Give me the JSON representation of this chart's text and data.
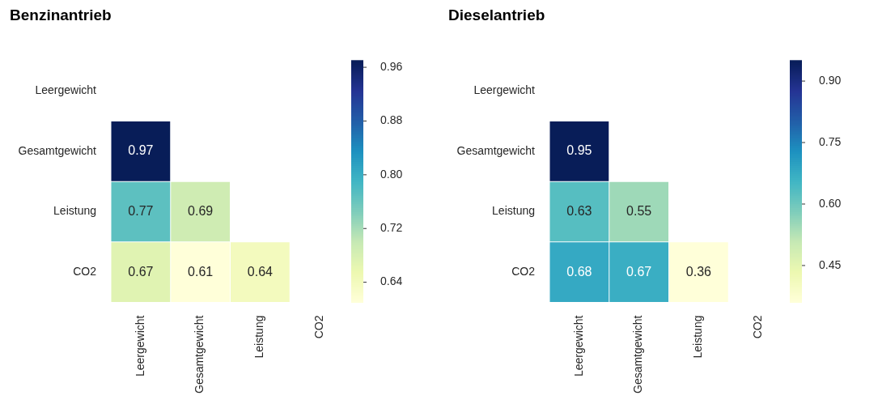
{
  "chart_data": [
    {
      "type": "heatmap",
      "title": "Benzinantrieb",
      "categories": [
        "Leergewicht",
        "Gesamtgewicht",
        "Leistung",
        "CO2"
      ],
      "y_categories": [
        "Leergewicht",
        "Gesamtgewicht",
        "Leistung",
        "CO2"
      ],
      "cells": [
        [
          null,
          null,
          null,
          null
        ],
        [
          0.97,
          null,
          null,
          null
        ],
        [
          0.77,
          0.69,
          null,
          null
        ],
        [
          0.67,
          0.61,
          0.64,
          null
        ]
      ],
      "clim": [
        0.61,
        0.97
      ],
      "cticks": [
        0.64,
        0.72,
        {
          "value": 0.8,
          "label": "0.80"
        },
        0.88,
        0.96
      ],
      "data_labels": true
    },
    {
      "type": "heatmap",
      "title": "Dieselantrieb",
      "categories": [
        "Leergewicht",
        "Gesamtgewicht",
        "Leistung",
        "CO2"
      ],
      "y_categories": [
        "Leergewicht",
        "Gesamtgewicht",
        "Leistung",
        "CO2"
      ],
      "cells": [
        [
          null,
          null,
          null,
          null
        ],
        [
          0.95,
          null,
          null,
          null
        ],
        [
          0.63,
          0.55,
          null,
          null
        ],
        [
          0.68,
          0.67,
          0.36,
          null
        ]
      ],
      "clim": [
        0.36,
        0.95
      ],
      "cticks": [
        0.45,
        {
          "value": 0.6,
          "label": "0.60"
        },
        0.75,
        {
          "value": 0.9,
          "label": "0.90"
        }
      ],
      "data_labels": true
    }
  ]
}
